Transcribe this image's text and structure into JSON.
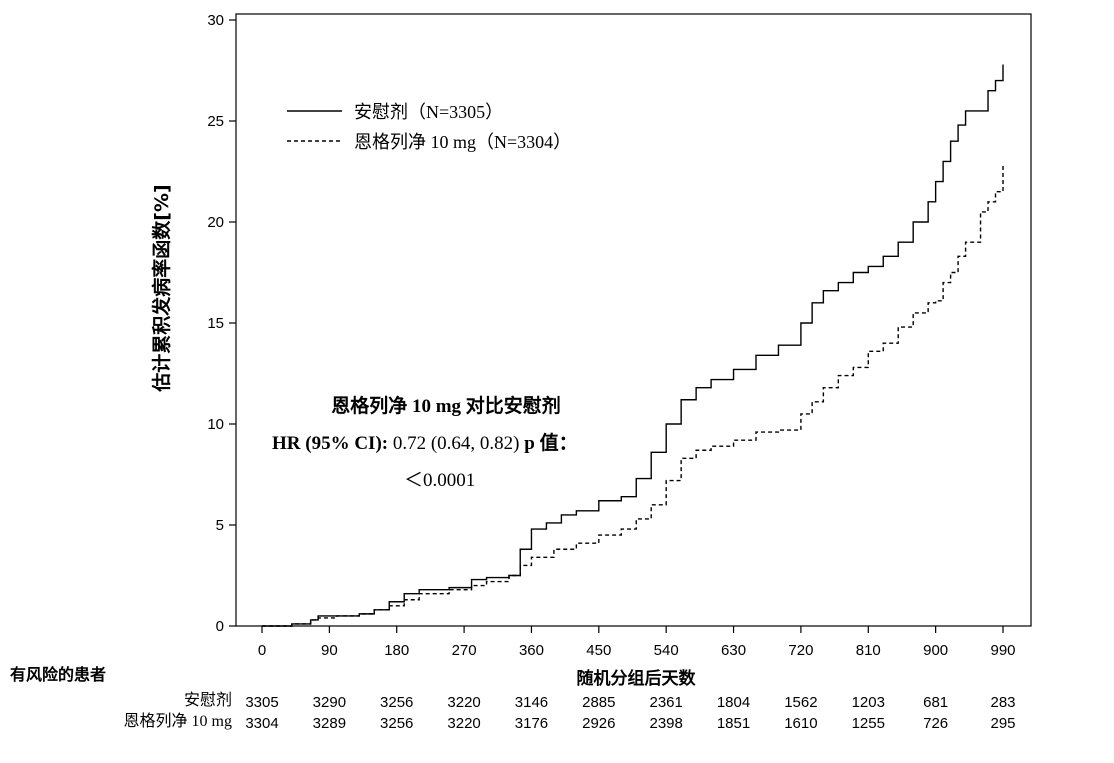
{
  "chart_data": {
    "type": "line",
    "ylabel": "估计累积发病率函数[%]",
    "xlabel": "随机分组后天数",
    "xlim": [
      0,
      1020
    ],
    "ylim": [
      0,
      30
    ],
    "xticks": [
      "0",
      "90",
      "180",
      "270",
      "360",
      "450",
      "540",
      "630",
      "720",
      "810",
      "900",
      "990"
    ],
    "yticks": [
      "0",
      "5",
      "10",
      "15",
      "20",
      "25",
      "30"
    ],
    "legend": [
      {
        "label": "安慰剂（N=3305）",
        "style": "solid"
      },
      {
        "label": "恩格列净 10 mg（N=3304）",
        "style": "dashed"
      }
    ],
    "series": [
      {
        "name": "安慰剂",
        "style": "solid",
        "x": [
          0,
          40,
          65,
          75,
          100,
          130,
          150,
          170,
          190,
          210,
          250,
          280,
          300,
          330,
          345,
          360,
          380,
          400,
          420,
          450,
          480,
          500,
          520,
          540,
          560,
          580,
          600,
          630,
          660,
          690,
          720,
          735,
          750,
          770,
          790,
          810,
          830,
          850,
          870,
          890,
          900,
          910,
          920,
          930,
          940,
          960,
          970,
          980,
          990
        ],
        "y": [
          0,
          0.1,
          0.3,
          0.5,
          0.5,
          0.6,
          0.8,
          1.2,
          1.6,
          1.8,
          1.9,
          2.3,
          2.4,
          2.5,
          3.8,
          4.8,
          5.1,
          5.5,
          5.7,
          6.2,
          6.4,
          7.3,
          8.6,
          10.0,
          11.2,
          11.8,
          12.2,
          12.7,
          13.4,
          13.9,
          15.0,
          16.0,
          16.6,
          17.0,
          17.5,
          17.8,
          18.3,
          19.0,
          20.0,
          21.0,
          22.0,
          23.0,
          24.0,
          24.8,
          25.5,
          25.5,
          26.5,
          27.0,
          27.8
        ]
      },
      {
        "name": "恩格列净 10 mg",
        "style": "dashed",
        "x": [
          0,
          40,
          65,
          75,
          100,
          130,
          150,
          170,
          190,
          210,
          250,
          280,
          300,
          330,
          345,
          360,
          390,
          420,
          450,
          480,
          500,
          520,
          540,
          560,
          580,
          600,
          630,
          660,
          690,
          720,
          735,
          750,
          770,
          790,
          810,
          830,
          850,
          870,
          890,
          900,
          910,
          920,
          930,
          940,
          960,
          970,
          980,
          990
        ],
        "y": [
          0,
          0.1,
          0.3,
          0.4,
          0.5,
          0.6,
          0.8,
          1.0,
          1.3,
          1.6,
          1.8,
          2.0,
          2.2,
          2.5,
          3.0,
          3.4,
          3.8,
          4.1,
          4.5,
          4.8,
          5.3,
          6.0,
          7.2,
          8.3,
          8.7,
          8.9,
          9.2,
          9.6,
          9.7,
          10.5,
          11.1,
          11.8,
          12.4,
          12.8,
          13.6,
          14.0,
          14.8,
          15.5,
          16.0,
          16.1,
          17.0,
          17.5,
          18.3,
          19.0,
          20.5,
          21.0,
          21.5,
          22.8
        ]
      }
    ],
    "annotation": {
      "line1": "恩格列净 10 mg 对比安慰剂",
      "hr_label": "HR (95% CI):",
      "hr_value": " 0.72 (0.64, 0.82) ",
      "p_label": "p 值：",
      "p_value": "＜0.0001"
    }
  },
  "risk_table": {
    "title": "有风险的患者",
    "rows": [
      {
        "label": "安慰剂",
        "values": [
          "3305",
          "3290",
          "3256",
          "3220",
          "3146",
          "2885",
          "2361",
          "1804",
          "1562",
          "1203",
          "681",
          "283"
        ]
      },
      {
        "label": "恩格列净 10 mg",
        "values": [
          "3304",
          "3289",
          "3256",
          "3220",
          "3176",
          "2926",
          "2398",
          "1851",
          "1610",
          "1255",
          "726",
          "295"
        ]
      }
    ]
  }
}
